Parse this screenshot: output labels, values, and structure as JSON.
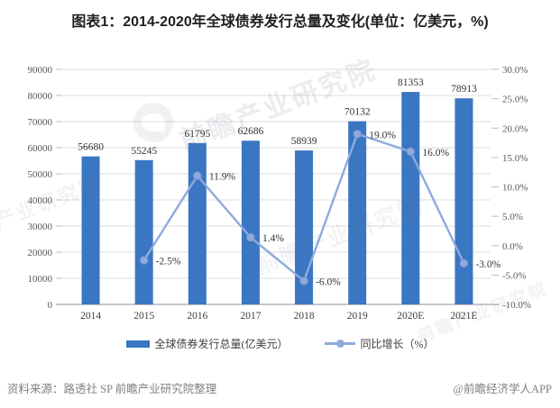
{
  "title": "图表1：2014-2020年全球债券发行总量及变化(单位：亿美元，%)",
  "source": {
    "left": "资料来源：路透社 SP 前瞻产业研究院整理",
    "right": "@前瞻经济学人APP"
  },
  "watermark": {
    "text": "前瞻产业研究院",
    "logo": "qianzhan-logo"
  },
  "colors": {
    "bar": "#3A76C1",
    "line": "#8FAADC",
    "marker_edge": "#7C99D6",
    "grid": "#DCDCDC",
    "tick": "#BFBFBF",
    "axis_line": "#A6A6A6",
    "axis_text": "#595959",
    "xaxis_text": "#404040",
    "value_text": "#333333",
    "title_text": "#1F1F1F",
    "source_text": "#7F7F7F"
  },
  "chart_data": {
    "type": "combo(bar+line)",
    "title": "图表1：2014-2020年全球债券发行总量及变化(单位：亿美元，%)",
    "categories": [
      "2014",
      "2015",
      "2016",
      "2017",
      "2018",
      "2019",
      "2020E",
      "2021E"
    ],
    "series": [
      {
        "name": "全球债券发行总量(亿美元）",
        "type": "bar",
        "axis": "left",
        "values": [
          56680,
          55245,
          61795,
          62686,
          58939,
          70132,
          81353,
          78913
        ],
        "labels": [
          "56680",
          "55245",
          "61795",
          "62686",
          "58939",
          "70132",
          "81353",
          "78913"
        ]
      },
      {
        "name": "同比增长（%）",
        "type": "line",
        "axis": "right",
        "values": [
          null,
          -2.5,
          11.9,
          1.4,
          -6.0,
          19.0,
          16.0,
          -3.0
        ],
        "labels": [
          null,
          "-2.5%",
          "11.9%",
          "1.4%",
          "-6.0%",
          "19.0%",
          "16.0%",
          "-3.0%"
        ]
      }
    ],
    "left_axis": {
      "min": 0,
      "max": 90000,
      "step": 10000,
      "ticks": [
        "0",
        "10000",
        "20000",
        "30000",
        "40000",
        "50000",
        "60000",
        "70000",
        "80000",
        "90000"
      ]
    },
    "right_axis": {
      "min": -10,
      "max": 30,
      "step": 5,
      "ticks": [
        "-10.0%",
        "-5.0%",
        "0.0%",
        "5.0%",
        "10.0%",
        "15.0%",
        "20.0%",
        "25.0%",
        "30.0%"
      ]
    },
    "grid": true,
    "legend_position": "bottom"
  }
}
